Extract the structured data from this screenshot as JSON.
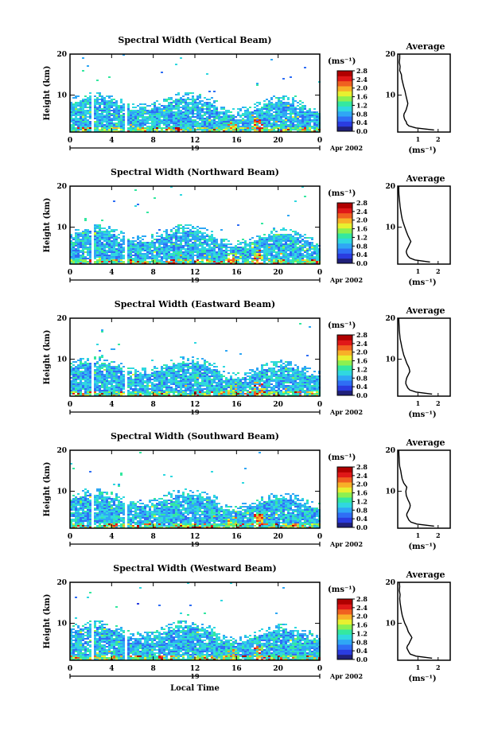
{
  "chart_data": [
    {
      "type": "heatmap",
      "title": "Spectral Width (Vertical Beam)",
      "ylabel": "Height (km)",
      "y_ticks": [
        "20",
        "10"
      ],
      "x_ticks": [
        "0",
        "4",
        "8",
        "12",
        "16",
        "20",
        "0"
      ],
      "date_label": "19",
      "month_label": "Apr 2002",
      "colorbar_unit": "(ms⁻¹)",
      "colorbar_ticks": [
        "2.8",
        "2.4",
        "2.0",
        "1.6",
        "1.2",
        "0.8",
        "0.4",
        "0.0"
      ],
      "xlim": [
        0,
        24
      ],
      "ylim": [
        1,
        20
      ],
      "clim": [
        0,
        2.8
      ],
      "profile": {
        "title": "Average",
        "xlabel": "(ms⁻¹)",
        "x_ticks": [
          "1",
          "2"
        ],
        "y_ticks": [
          "20",
          "10"
        ],
        "height": [
          1.5,
          2,
          2.5,
          3,
          3.5,
          4,
          4.5,
          5,
          5.5,
          6,
          6.5,
          7,
          7.5,
          8,
          9,
          10,
          11,
          12,
          13,
          14,
          15,
          16,
          17,
          18,
          19,
          20
        ],
        "width": [
          1.8,
          0.9,
          0.55,
          0.45,
          0.42,
          0.35,
          0.32,
          0.3,
          0.32,
          0.38,
          0.42,
          0.45,
          0.48,
          0.5,
          0.45,
          0.4,
          0.36,
          0.3,
          0.25,
          0.2,
          0.18,
          0.1,
          0.12,
          0.08,
          0.1,
          0.1
        ]
      }
    },
    {
      "type": "heatmap",
      "title": "Spectral Width (Northward Beam)",
      "ylabel": "Height (km)",
      "y_ticks": [
        "20",
        "10"
      ],
      "x_ticks": [
        "0",
        "4",
        "8",
        "12",
        "16",
        "20",
        "0"
      ],
      "date_label": "19",
      "month_label": "Apr 2002",
      "colorbar_unit": "(ms⁻¹)",
      "colorbar_ticks": [
        "2.8",
        "2.4",
        "2.0",
        "1.6",
        "1.2",
        "0.8",
        "0.4",
        "0.0"
      ],
      "xlim": [
        0,
        24
      ],
      "ylim": [
        1,
        20
      ],
      "clim": [
        0,
        2.8
      ],
      "profile": {
        "title": "Average",
        "xlabel": "(ms⁻¹)",
        "x_ticks": [
          "1",
          "2"
        ],
        "y_ticks": [
          "20",
          "10"
        ],
        "height": [
          1.5,
          2,
          2.5,
          3,
          3.5,
          4,
          4.5,
          5,
          5.5,
          6,
          6.5,
          7,
          7.5,
          8,
          9,
          10,
          11,
          12,
          13,
          14,
          15,
          16,
          17,
          18,
          19,
          20
        ],
        "width": [
          1.6,
          0.85,
          0.6,
          0.5,
          0.45,
          0.42,
          0.45,
          0.5,
          0.55,
          0.6,
          0.65,
          0.6,
          0.55,
          0.5,
          0.42,
          0.35,
          0.28,
          0.22,
          0.18,
          0.15,
          0.12,
          0.1,
          0.08,
          0.06,
          0.05,
          0.05
        ]
      }
    },
    {
      "type": "heatmap",
      "title": "Spectral Width (Eastward Beam)",
      "ylabel": "Height (km)",
      "y_ticks": [
        "20",
        "10"
      ],
      "x_ticks": [
        "0",
        "4",
        "8",
        "12",
        "16",
        "20",
        "0"
      ],
      "date_label": "19",
      "month_label": "Apr 2002",
      "colorbar_unit": "(ms⁻¹)",
      "colorbar_ticks": [
        "2.8",
        "2.4",
        "2.0",
        "1.6",
        "1.2",
        "0.8",
        "0.4",
        "0.0"
      ],
      "xlim": [
        0,
        24
      ],
      "ylim": [
        1,
        20
      ],
      "clim": [
        0,
        2.8
      ],
      "profile": {
        "title": "Average",
        "xlabel": "(ms⁻¹)",
        "x_ticks": [
          "1",
          "2"
        ],
        "y_ticks": [
          "20",
          "10"
        ],
        "height": [
          1.5,
          2,
          2.5,
          3,
          3.5,
          4,
          4.5,
          5,
          5.5,
          6,
          6.5,
          7,
          7.5,
          8,
          9,
          10,
          11,
          12,
          13,
          14,
          15,
          16,
          17,
          18,
          19,
          20
        ],
        "width": [
          1.7,
          0.9,
          0.6,
          0.5,
          0.45,
          0.4,
          0.4,
          0.42,
          0.45,
          0.5,
          0.55,
          0.6,
          0.58,
          0.55,
          0.45,
          0.38,
          0.3,
          0.25,
          0.2,
          0.16,
          0.12,
          0.1,
          0.08,
          0.07,
          0.06,
          0.05
        ]
      }
    },
    {
      "type": "heatmap",
      "title": "Spectral Width (Southward Beam)",
      "ylabel": "Height (km)",
      "y_ticks": [
        "20",
        "10"
      ],
      "x_ticks": [
        "0",
        "4",
        "8",
        "12",
        "16",
        "20",
        "0"
      ],
      "date_label": "19",
      "month_label": "Apr 2002",
      "colorbar_unit": "(ms⁻¹)",
      "colorbar_ticks": [
        "2.8",
        "2.4",
        "2.0",
        "1.6",
        "1.2",
        "0.8",
        "0.4",
        "0.0"
      ],
      "xlim": [
        0,
        24
      ],
      "ylim": [
        1,
        20
      ],
      "clim": [
        0,
        2.8
      ],
      "profile": {
        "title": "Average",
        "xlabel": "(ms⁻¹)",
        "x_ticks": [
          "1",
          "2"
        ],
        "y_ticks": [
          "20",
          "10"
        ],
        "height": [
          1.5,
          2,
          2.5,
          3,
          3.5,
          4,
          4.5,
          5,
          5.5,
          6,
          6.5,
          7,
          7.5,
          8,
          9,
          10,
          11,
          12,
          13,
          14,
          15,
          16,
          17,
          18,
          19,
          20
        ],
        "width": [
          1.8,
          0.95,
          0.65,
          0.55,
          0.5,
          0.45,
          0.45,
          0.5,
          0.55,
          0.6,
          0.62,
          0.6,
          0.55,
          0.5,
          0.42,
          0.4,
          0.45,
          0.3,
          0.22,
          0.18,
          0.15,
          0.1,
          0.08,
          0.07,
          0.06,
          0.05
        ]
      }
    },
    {
      "type": "heatmap",
      "title": "Spectral Width (Westward Beam)",
      "ylabel": "Height (km)",
      "y_ticks": [
        "20",
        "10"
      ],
      "x_ticks": [
        "0",
        "4",
        "8",
        "12",
        "16",
        "20",
        "0"
      ],
      "date_label": "19",
      "month_label": "Apr 2002",
      "xlabel": "Local Time",
      "colorbar_unit": "(ms⁻¹)",
      "colorbar_ticks": [
        "2.8",
        "2.4",
        "2.0",
        "1.6",
        "1.2",
        "0.8",
        "0.4",
        "0.0"
      ],
      "xlim": [
        0,
        24
      ],
      "ylim": [
        1,
        20
      ],
      "clim": [
        0,
        2.8
      ],
      "profile": {
        "title": "Average",
        "xlabel": "(ms⁻¹)",
        "x_ticks": [
          "1",
          "2"
        ],
        "y_ticks": [
          "20",
          "10"
        ],
        "height": [
          1.5,
          2,
          2.5,
          3,
          3.5,
          4,
          4.5,
          5,
          5.5,
          6,
          6.5,
          7,
          7.5,
          8,
          9,
          10,
          11,
          12,
          13,
          14,
          15,
          16,
          17,
          18,
          19,
          20
        ],
        "width": [
          1.7,
          0.9,
          0.62,
          0.55,
          0.5,
          0.45,
          0.48,
          0.55,
          0.6,
          0.65,
          0.7,
          0.65,
          0.58,
          0.52,
          0.45,
          0.35,
          0.28,
          0.22,
          0.18,
          0.15,
          0.12,
          0.1,
          0.12,
          0.08,
          0.1,
          0.08
        ]
      }
    }
  ],
  "colors": {
    "scale": [
      "#20207a",
      "#2a3ce0",
      "#2f6ef5",
      "#2fa7f5",
      "#30d8e0",
      "#34e8a0",
      "#8cf050",
      "#e8f030",
      "#f8b028",
      "#f06020",
      "#e01818",
      "#b00000"
    ]
  }
}
